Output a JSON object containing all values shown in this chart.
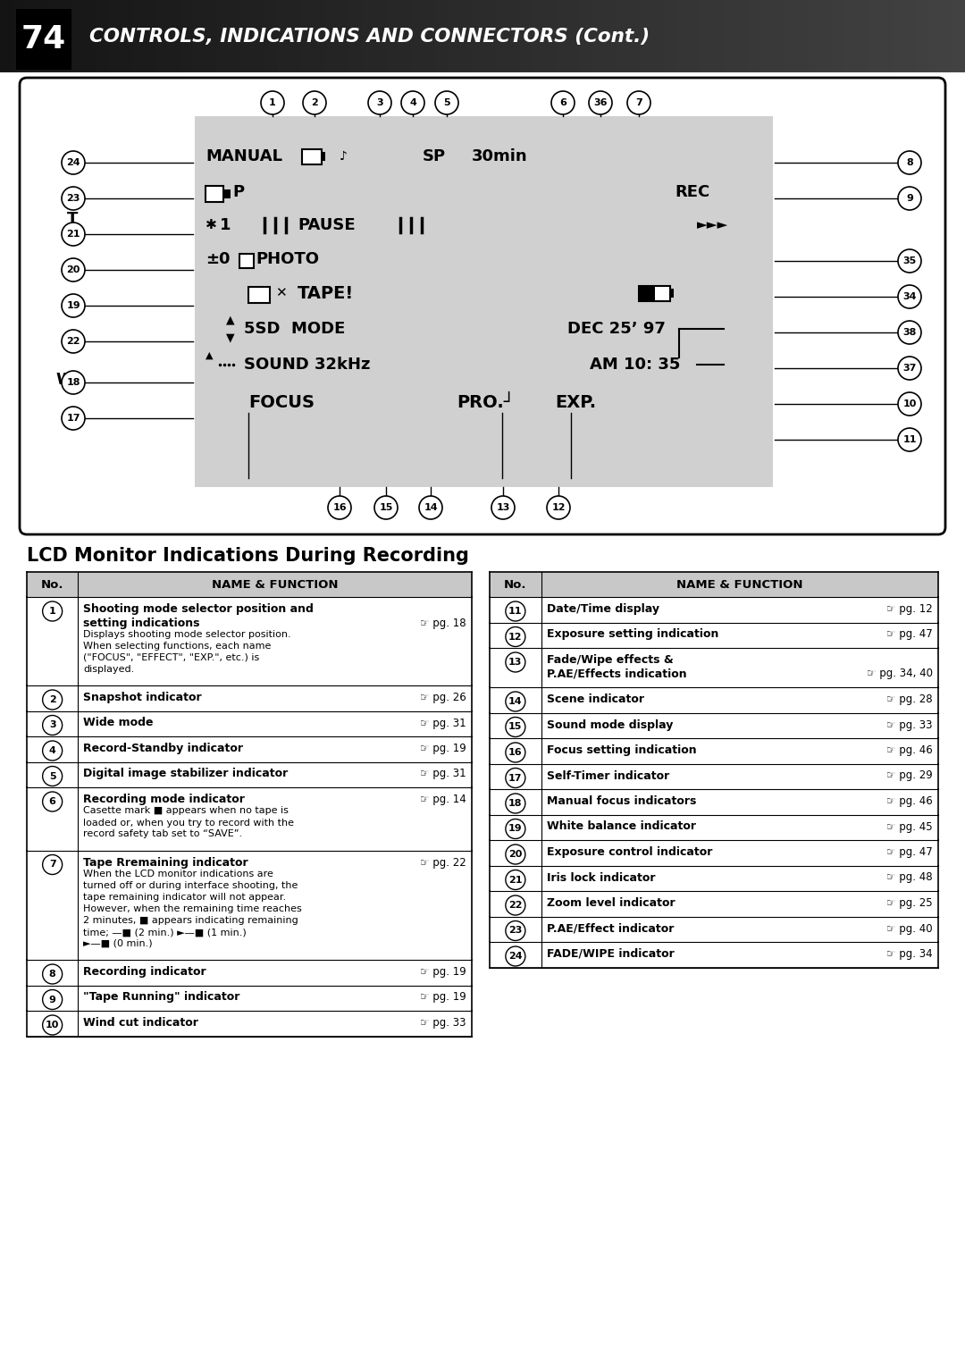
{
  "page_number": "74",
  "header_title": "CONTROLS, INDICATIONS AND CONNECTORS (Cont.)",
  "section_title": "LCD Monitor Indications During Recording",
  "bg_color": "#ffffff",
  "header_bg": "#1a1a1a",
  "left_table_rows": [
    {
      "num": "1",
      "bold_name": "Shooting mode selector position and\nsetting indications",
      "page": "pg. 18",
      "extra": "Displays shooting mode selector position.\nWhen selecting functions, each name\n(\"FOCUS\", \"EFFECT\", \"EXP.\", etc.) is\ndisplayed."
    },
    {
      "num": "2",
      "bold_name": "Snapshot indicator",
      "page": "pg. 26",
      "extra": ""
    },
    {
      "num": "3",
      "bold_name": "Wide mode",
      "page": "pg. 31",
      "extra": ""
    },
    {
      "num": "4",
      "bold_name": "Record-Standby indicator",
      "page": "pg. 19",
      "extra": ""
    },
    {
      "num": "5",
      "bold_name": "Digital image stabilizer indicator",
      "page": "pg. 31",
      "extra": ""
    },
    {
      "num": "6",
      "bold_name": "Recording mode indicator",
      "page": "pg. 14",
      "extra": "Casette mark ■ appears when no tape is\nloaded or, when you try to record with the\nrecord safety tab set to “SAVE”."
    },
    {
      "num": "7",
      "bold_name": "Tape Rremaining indicator",
      "page": "pg. 22",
      "extra": "When the LCD monitor indications are\nturned off or during interface shooting, the\ntape remaining indicator will not appear.\nHowever, when the remaining time reaches\n2 minutes, ■ appears indicating remaining\ntime; —■ (2 min.) ►—■ (1 min.)\n►—■ (0 min.)"
    },
    {
      "num": "8",
      "bold_name": "Recording indicator",
      "page": "pg. 19",
      "extra": ""
    },
    {
      "num": "9",
      "bold_name": "\"Tape Running\" indicator",
      "page": "pg. 19",
      "extra": ""
    },
    {
      "num": "10",
      "bold_name": "Wind cut indicator",
      "page": "pg. 33",
      "extra": ""
    }
  ],
  "right_table_rows": [
    {
      "num": "11",
      "bold_name": "Date/Time display",
      "page": "pg. 12",
      "extra": ""
    },
    {
      "num": "12",
      "bold_name": "Exposure setting indication",
      "page": "pg. 47",
      "extra": ""
    },
    {
      "num": "13",
      "bold_name": "Fade/Wipe effects &\nP.AE/Effects indication",
      "page": "pg. 34, 40",
      "extra": ""
    },
    {
      "num": "14",
      "bold_name": "Scene indicator",
      "page": "pg. 28",
      "extra": ""
    },
    {
      "num": "15",
      "bold_name": "Sound mode display",
      "page": "pg. 33",
      "extra": ""
    },
    {
      "num": "16",
      "bold_name": "Focus setting indication",
      "page": "pg. 46",
      "extra": ""
    },
    {
      "num": "17",
      "bold_name": "Self-Timer indicator",
      "page": "pg. 29",
      "extra": ""
    },
    {
      "num": "18",
      "bold_name": "Manual focus indicators",
      "page": "pg. 46",
      "extra": ""
    },
    {
      "num": "19",
      "bold_name": "White balance indicator",
      "page": "pg. 45",
      "extra": ""
    },
    {
      "num": "20",
      "bold_name": "Exposure control indicator",
      "page": "pg. 47",
      "extra": ""
    },
    {
      "num": "21",
      "bold_name": "Iris lock indicator",
      "page": "pg. 48",
      "extra": ""
    },
    {
      "num": "22",
      "bold_name": "Zoom level indicator",
      "page": "pg. 25",
      "extra": ""
    },
    {
      "num": "23",
      "bold_name": "P.AE/Effect indicator",
      "page": "pg. 40",
      "extra": ""
    },
    {
      "num": "24",
      "bold_name": "FADE/WIPE indicator",
      "page": "pg. 34",
      "extra": ""
    }
  ]
}
